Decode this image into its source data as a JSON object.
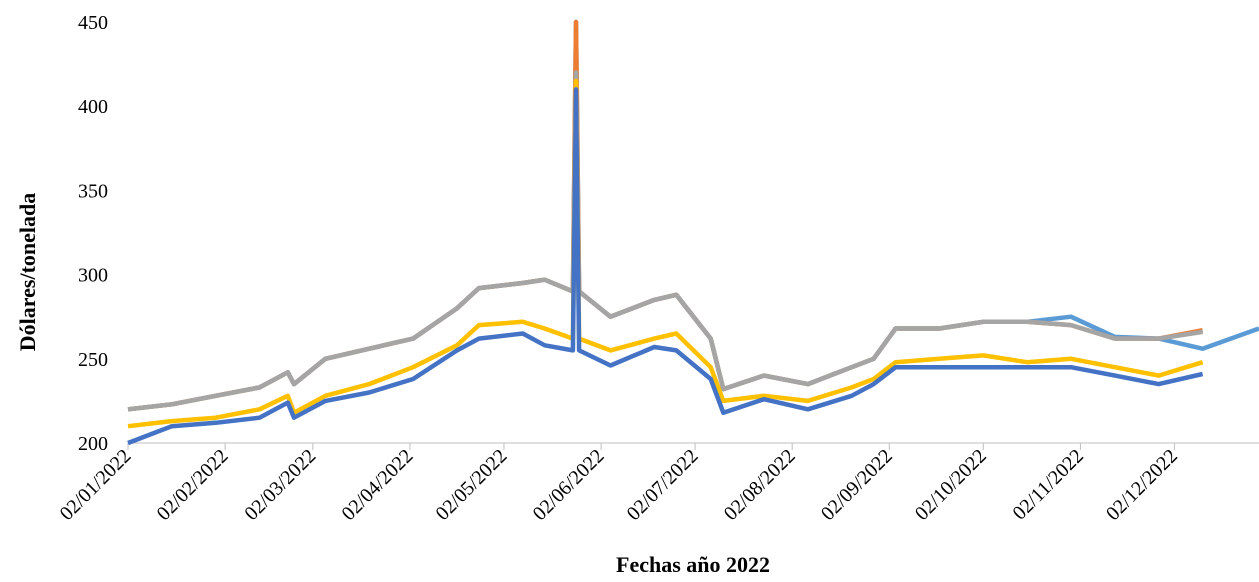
{
  "chart_data": {
    "type": "line",
    "xlabel": "Fechas año 2022",
    "ylabel": "Dólares/tonelada",
    "x": [
      "02/01/2022",
      "16/01/2022",
      "30/01/2022",
      "13/02/2022",
      "22/02/2022",
      "24/02/2022",
      "06/03/2022",
      "20/03/2022",
      "03/04/2022",
      "17/04/2022",
      "24/04/2022",
      "08/05/2022",
      "15/05/2022",
      "24/05/2022",
      "25/05/2022",
      "26/05/2022",
      "05/06/2022",
      "19/06/2022",
      "26/06/2022",
      "07/07/2022",
      "11/07/2022",
      "24/07/2022",
      "07/08/2022",
      "21/08/2022",
      "28/08/2022",
      "04/09/2022",
      "18/09/2022",
      "02/10/2022",
      "16/10/2022",
      "30/10/2022",
      "13/11/2022",
      "27/11/2022",
      "11/12/2022",
      "29/12/2022"
    ],
    "series": [
      {
        "color": "#5b9bd5",
        "values": [
          220,
          223,
          228,
          233,
          242,
          235,
          250,
          256,
          262,
          280,
          292,
          295,
          297,
          290,
          450,
          290,
          275,
          285,
          288,
          262,
          232,
          240,
          235,
          245,
          250,
          268,
          268,
          272,
          272,
          275,
          263,
          262,
          256,
          268
        ]
      },
      {
        "color": "#ed7d31",
        "values": [
          220,
          223,
          228,
          233,
          242,
          235,
          250,
          256,
          262,
          280,
          292,
          295,
          297,
          290,
          450,
          290,
          275,
          285,
          288,
          262,
          232,
          240,
          235,
          245,
          250,
          268,
          268,
          272,
          272,
          270,
          262,
          262,
          267,
          null
        ]
      },
      {
        "color": "#a5a5a5",
        "values": [
          220,
          223,
          228,
          233,
          242,
          235,
          250,
          256,
          262,
          280,
          292,
          295,
          297,
          290,
          420,
          290,
          275,
          285,
          288,
          262,
          232,
          240,
          235,
          245,
          250,
          268,
          268,
          272,
          272,
          270,
          262,
          262,
          266,
          null
        ]
      },
      {
        "color": "#ffc000",
        "values": [
          210,
          213,
          215,
          220,
          228,
          218,
          228,
          235,
          245,
          258,
          270,
          272,
          268,
          262,
          415,
          262,
          255,
          262,
          265,
          245,
          225,
          228,
          225,
          233,
          238,
          248,
          250,
          252,
          248,
          250,
          245,
          240,
          248,
          null
        ]
      },
      {
        "color": "#4472c4",
        "values": [
          200,
          210,
          212,
          215,
          224,
          215,
          225,
          230,
          238,
          255,
          262,
          265,
          258,
          255,
          410,
          255,
          246,
          257,
          255,
          238,
          218,
          226,
          220,
          228,
          235,
          245,
          245,
          245,
          245,
          245,
          240,
          235,
          241,
          null
        ]
      }
    ],
    "xlim": [
      "02/01/2022",
      "29/12/2022"
    ],
    "xticks": [
      "02/01/2022",
      "02/02/2022",
      "02/03/2022",
      "02/04/2022",
      "02/05/2022",
      "02/06/2022",
      "02/07/2022",
      "02/08/2022",
      "02/09/2022",
      "02/10/2022",
      "02/11/2022",
      "02/12/2022"
    ],
    "ylim": [
      200,
      450
    ],
    "yticks": [
      200,
      250,
      300,
      350,
      400,
      450
    ],
    "grid": false
  }
}
